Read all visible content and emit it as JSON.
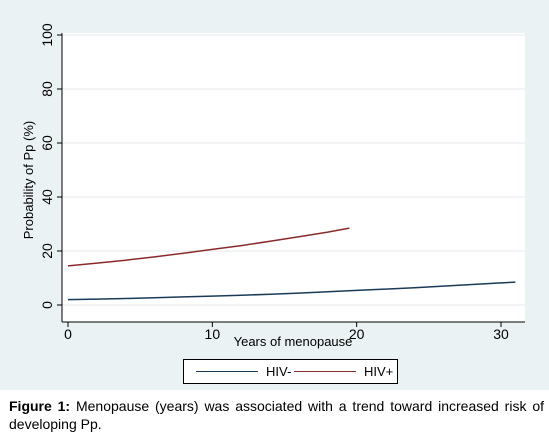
{
  "caption": {
    "label": "Figure 1:",
    "text": " Menopause (years) was associated with a trend toward increased risk of developing Pp."
  },
  "chart_data": {
    "type": "line",
    "title": "",
    "xlabel": "Years of menopause",
    "ylabel": "Probability of Pp (%)",
    "xlim": [
      0,
      31
    ],
    "ylim": [
      0,
      100
    ],
    "x_ticks": [
      0,
      10,
      20,
      30
    ],
    "y_ticks": [
      0,
      20,
      40,
      60,
      80,
      100
    ],
    "grid": true,
    "legend_position": "bottom",
    "series": [
      {
        "name": "HIV-",
        "color": "#1a3b57",
        "x": [
          0,
          2,
          4,
          6,
          8,
          10,
          12,
          14,
          16,
          18,
          20,
          22,
          24,
          26,
          28,
          30,
          31
        ],
        "y": [
          2.0,
          2.2,
          2.4,
          2.7,
          3.0,
          3.3,
          3.6,
          4.0,
          4.4,
          4.9,
          5.4,
          5.9,
          6.4,
          7.0,
          7.6,
          8.2,
          8.5
        ]
      },
      {
        "name": "HIV+",
        "color": "#8b2a2a",
        "x": [
          0,
          2,
          4,
          6,
          8,
          10,
          12,
          14,
          16,
          18,
          19.5
        ],
        "y": [
          14.5,
          15.5,
          16.6,
          17.8,
          19.2,
          20.6,
          22.0,
          23.6,
          25.3,
          27.0,
          28.5
        ]
      }
    ]
  }
}
